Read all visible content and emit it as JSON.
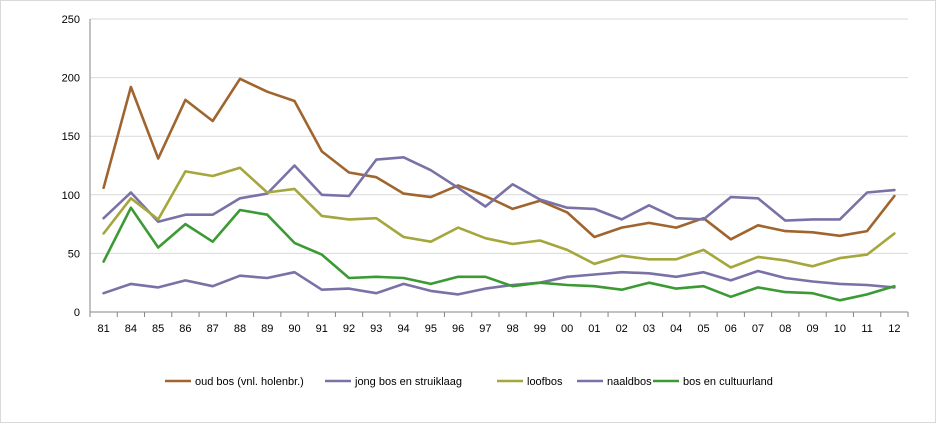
{
  "chart_data": {
    "type": "line",
    "title": "",
    "xlabel": "",
    "ylabel": "",
    "ylim": [
      0,
      250
    ],
    "yticks": [
      "0",
      "50",
      "100",
      "150",
      "200",
      "250"
    ],
    "grid": true,
    "legend": "bottom",
    "categories": [
      "81",
      "84",
      "85",
      "86",
      "87",
      "88",
      "89",
      "90",
      "91",
      "92",
      "93",
      "94",
      "95",
      "96",
      "97",
      "98",
      "99",
      "00",
      "01",
      "02",
      "03",
      "04",
      "05",
      "06",
      "07",
      "08",
      "09",
      "10",
      "11",
      "12"
    ],
    "series": [
      {
        "name": "oud bos (vnl. holenbr.)",
        "color": "#A0652E",
        "values": [
          106,
          192,
          131,
          181,
          163,
          199,
          188,
          180,
          137,
          119,
          115,
          101,
          98,
          108,
          99,
          88,
          95,
          85,
          64,
          72,
          76,
          72,
          80,
          62,
          74,
          69,
          68,
          65,
          69,
          99
        ]
      },
      {
        "name": "jong bos en struiklaag",
        "color": "#7A72A6",
        "values": [
          80,
          102,
          77,
          83,
          83,
          97,
          101,
          125,
          100,
          99,
          130,
          132,
          121,
          106,
          90,
          109,
          96,
          89,
          88,
          79,
          91,
          80,
          79,
          98,
          97,
          78,
          79,
          79,
          102,
          104
        ]
      },
      {
        "name": "loofbos",
        "color": "#A5A63C",
        "values": [
          67,
          97,
          79,
          120,
          116,
          123,
          102,
          105,
          82,
          79,
          80,
          64,
          60,
          72,
          63,
          58,
          61,
          53,
          41,
          48,
          45,
          45,
          53,
          38,
          47,
          44,
          39,
          46,
          49,
          67
        ]
      },
      {
        "name": "naaldbos",
        "color": "#7A72A6",
        "values": [
          16,
          24,
          21,
          27,
          22,
          31,
          29,
          34,
          19,
          20,
          16,
          24,
          18,
          15,
          20,
          23,
          25,
          30,
          32,
          34,
          33,
          30,
          34,
          27,
          35,
          29,
          26,
          24,
          23,
          21
        ]
      },
      {
        "name": "bos en cultuurland",
        "color": "#3C9A35",
        "values": [
          43,
          89,
          55,
          75,
          60,
          87,
          83,
          59,
          49,
          29,
          30,
          29,
          24,
          30,
          30,
          22,
          25,
          23,
          22,
          19,
          25,
          20,
          22,
          13,
          21,
          17,
          16,
          10,
          15,
          22
        ]
      }
    ]
  }
}
